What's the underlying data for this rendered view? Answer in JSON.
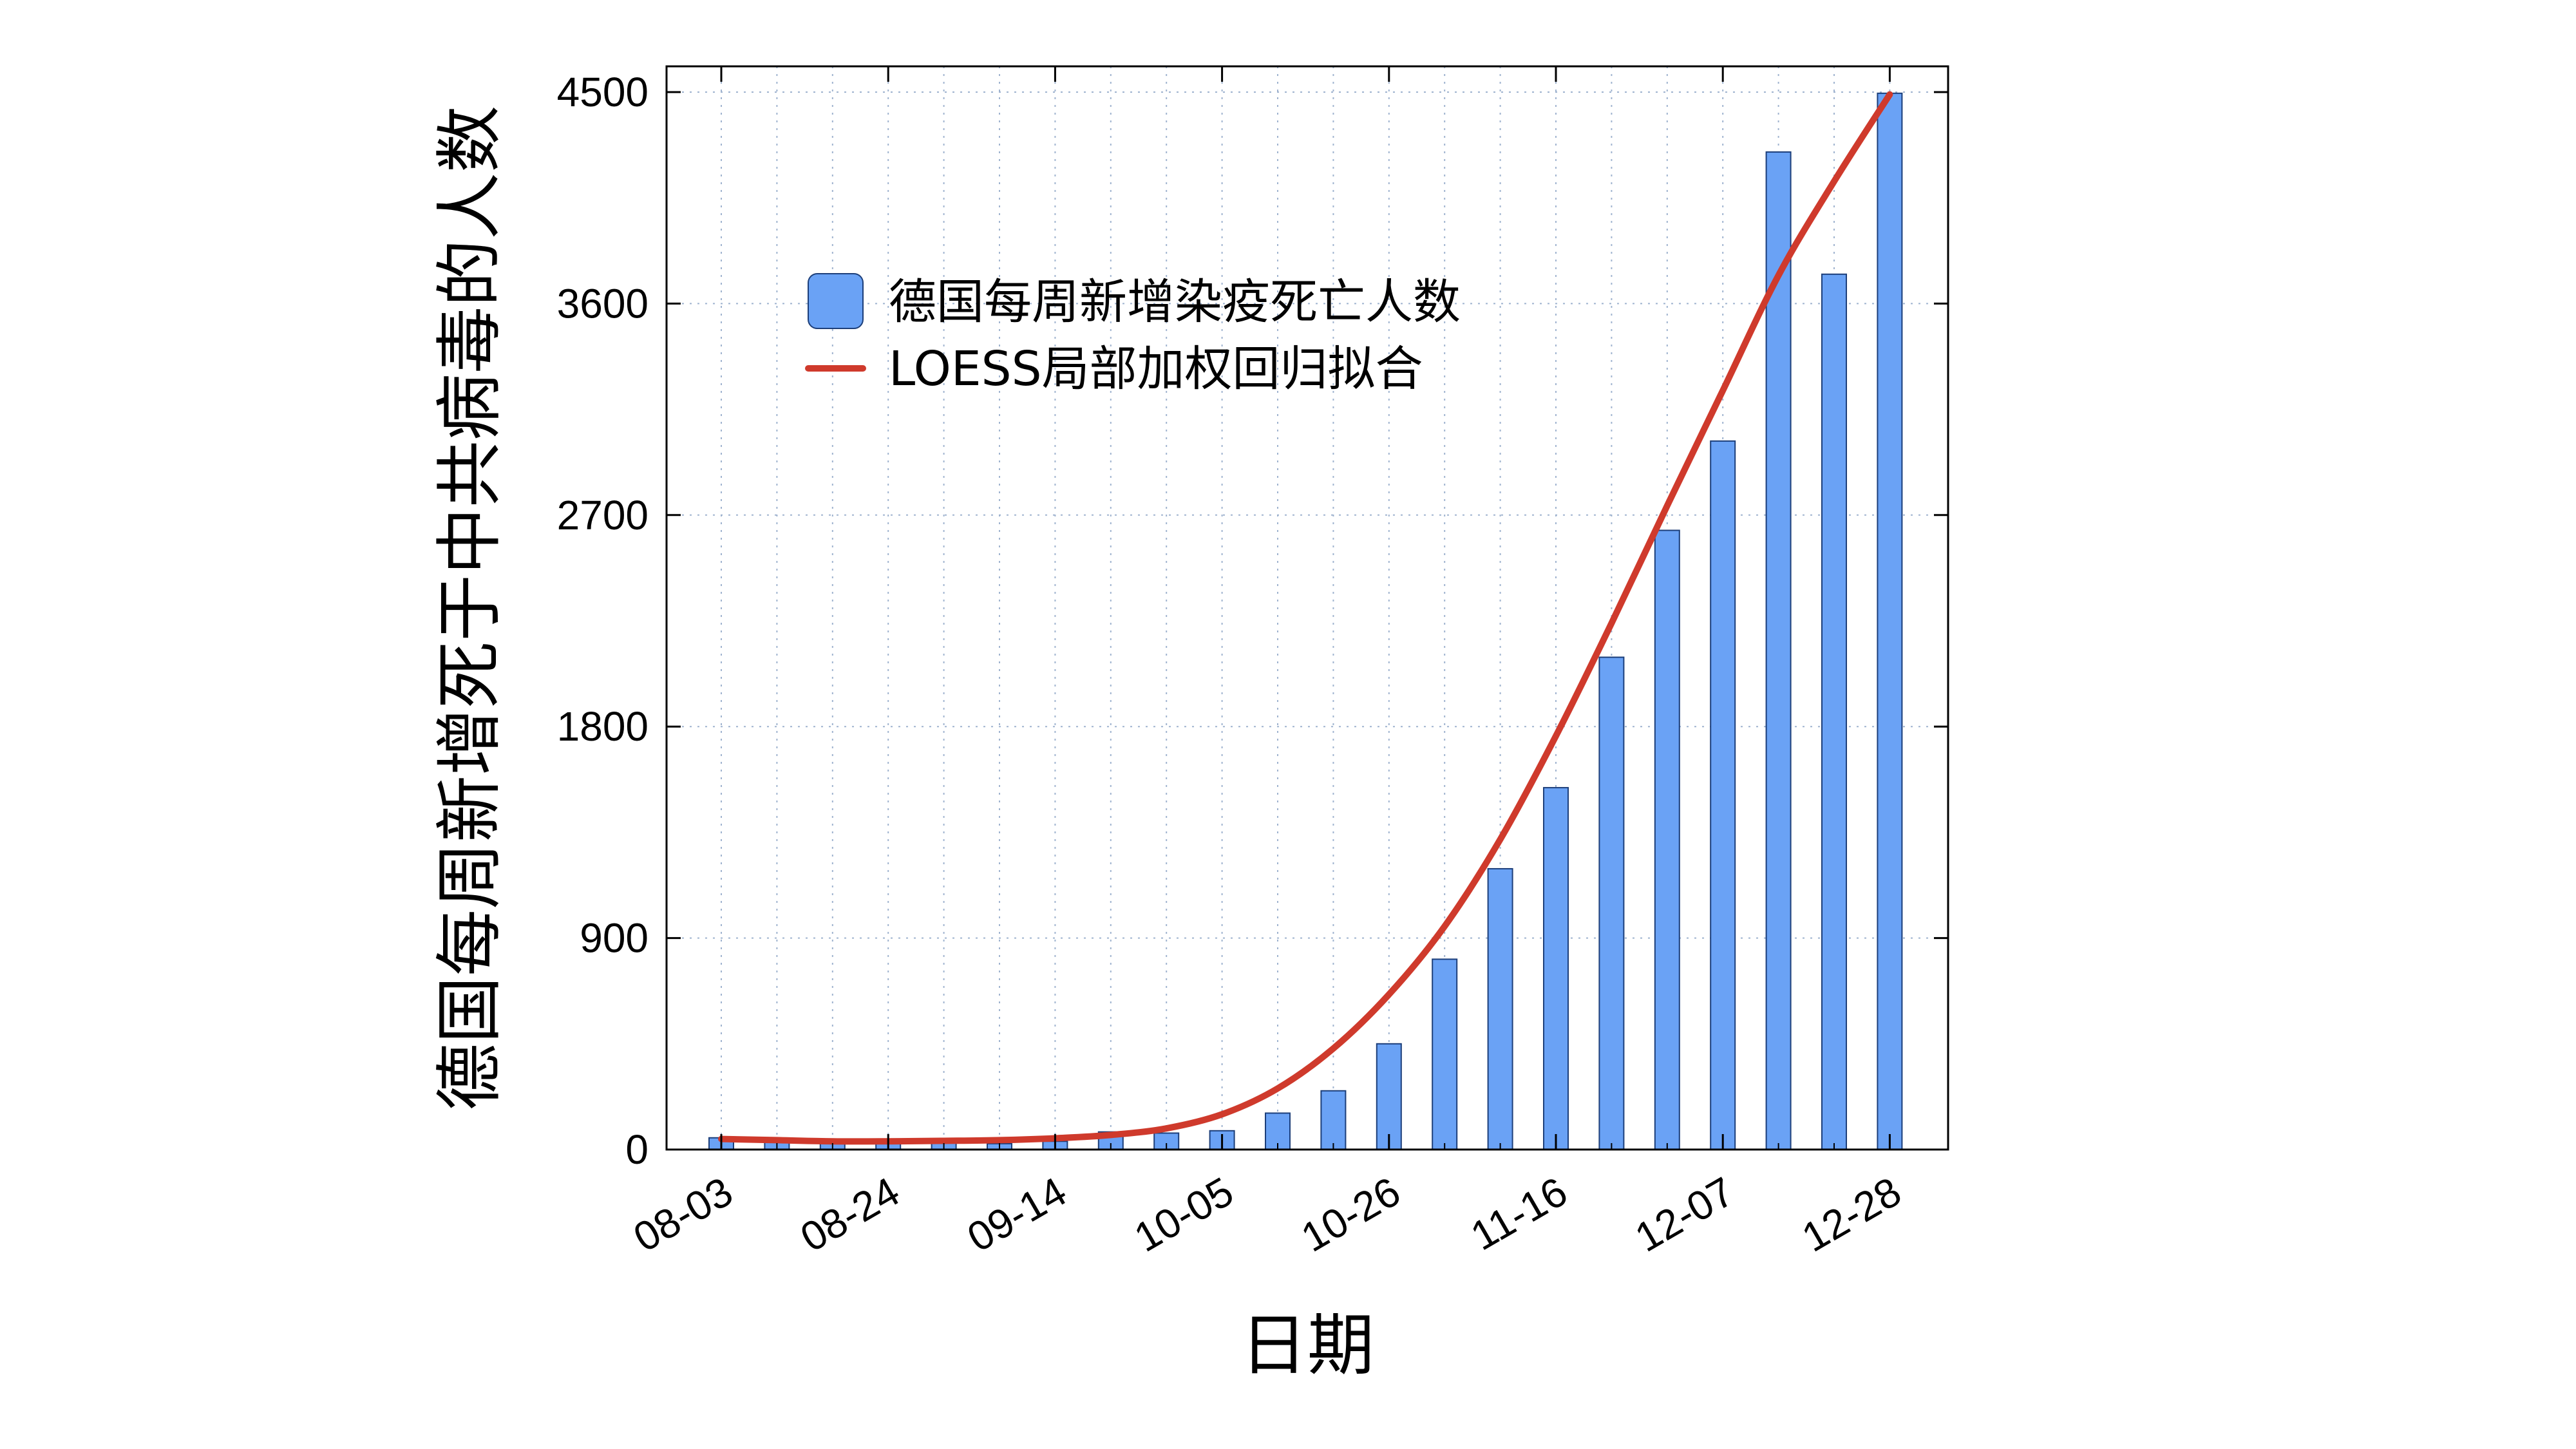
{
  "chart_data": {
    "type": "bar",
    "xlabel": "日期",
    "ylabel": "德国每周新增死于中共病毒的人数",
    "ylim": [
      0,
      4500
    ],
    "yticks": [
      0,
      900,
      1800,
      2700,
      3600,
      4500
    ],
    "xtick_labels": [
      "08-03",
      "08-24",
      "09-14",
      "10-05",
      "10-26",
      "11-16",
      "12-07",
      "12-28"
    ],
    "grid": true,
    "legend_position": "upper-left-center",
    "colors": {
      "bar_fill": "#6aa2f5",
      "bar_edge": "#1d3f7a",
      "fit_line": "#cf3a2c",
      "grid": "#9fb3cf"
    },
    "categories": [
      "08-03",
      "08-10",
      "08-17",
      "08-24",
      "08-31",
      "09-07",
      "09-14",
      "09-21",
      "09-28",
      "10-05",
      "10-12",
      "10-19",
      "10-26",
      "11-02",
      "11-09",
      "11-16",
      "11-23",
      "11-30",
      "12-07",
      "12-14",
      "12-21",
      "12-28"
    ],
    "series": [
      {
        "name": "德国每周新增染疫死亡人数",
        "kind": "bar",
        "values": [
          50,
          40,
          35,
          30,
          30,
          25,
          35,
          75,
          70,
          80,
          155,
          250,
          450,
          810,
          1195,
          1540,
          2095,
          2635,
          3015,
          4245,
          3725,
          4495
        ]
      },
      {
        "name": "LOESS局部加权回归拟合",
        "kind": "line",
        "values": [
          45,
          40,
          35,
          35,
          37,
          40,
          48,
          62,
          90,
          150,
          260,
          430,
          660,
          950,
          1320,
          1760,
          2240,
          2740,
          3230,
          3720,
          4120,
          4490
        ]
      }
    ]
  }
}
